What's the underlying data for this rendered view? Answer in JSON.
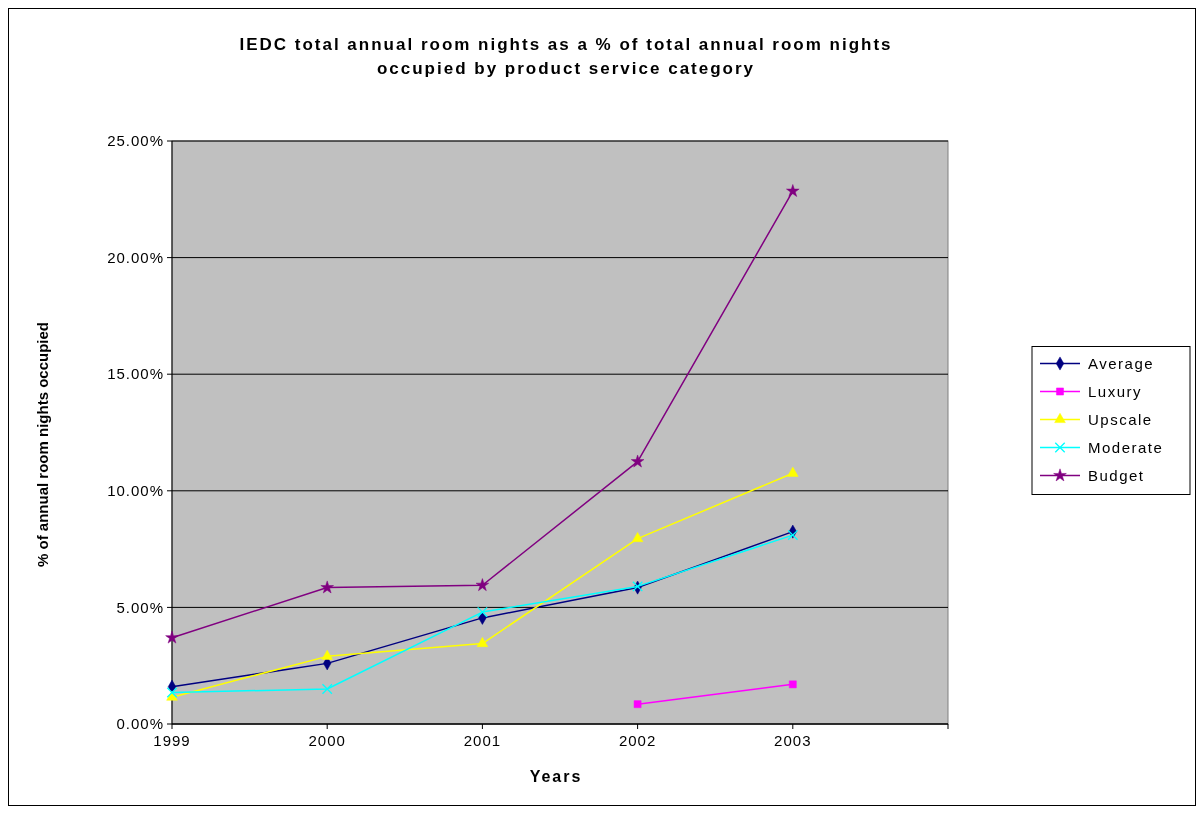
{
  "chart_data": {
    "type": "line",
    "title": "IEDC total annual room nights as a % of total annual room nights occupied by product service category",
    "xlabel": "Years",
    "ylabel": "% of annual room nights occupied",
    "x": [
      1999,
      2000,
      2001,
      2002,
      2003
    ],
    "xlim": [
      1999,
      2004
    ],
    "xticks": [
      1999,
      2000,
      2001,
      2002,
      2003,
      {
        "value": 2004,
        "label": null
      }
    ],
    "ylim": [
      0,
      25
    ],
    "yticks": [
      {
        "value": 0,
        "label": "0.00%"
      },
      {
        "value": 5,
        "label": "5.00%"
      },
      {
        "value": 10,
        "label": "10.00%"
      },
      {
        "value": 15,
        "label": "15.00%"
      },
      {
        "value": 20,
        "label": "20.00%"
      },
      {
        "value": 25,
        "label": "25.00%"
      }
    ],
    "grid": "y",
    "legend": "right",
    "series": [
      {
        "name": "Average",
        "color": "#000080",
        "marker": "diamond",
        "values": [
          1.6,
          2.6,
          4.55,
          5.85,
          8.25
        ]
      },
      {
        "name": "Luxury",
        "color": "#ff00ff",
        "marker": "square",
        "values": [
          null,
          null,
          null,
          0.85,
          1.7
        ]
      },
      {
        "name": "Upscale",
        "color": "#ffff00",
        "marker": "triangle",
        "values": [
          1.15,
          2.9,
          3.45,
          7.95,
          10.75
        ]
      },
      {
        "name": "Moderate",
        "color": "#00ffff",
        "marker": "cross",
        "values": [
          1.35,
          1.5,
          4.8,
          5.9,
          8.1
        ]
      },
      {
        "name": "Budget",
        "color": "#800080",
        "marker": "star",
        "values": [
          3.7,
          5.85,
          5.95,
          11.25,
          22.85
        ]
      }
    ]
  }
}
